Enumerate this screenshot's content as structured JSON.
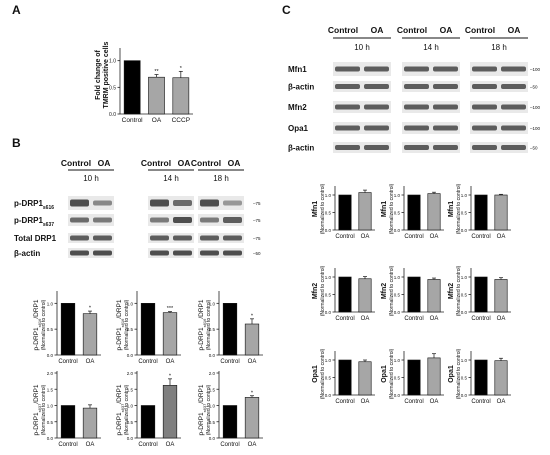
{
  "panel_a": {
    "letter": "A",
    "ylabel_line1": "Fold change of",
    "ylabel_line2": "TMRM positive cells",
    "yticks": [
      "0.0",
      "0.5",
      "1.0"
    ],
    "categories": [
      "Control",
      "OA",
      "CCCP"
    ],
    "sig": [
      "",
      "**",
      "*"
    ]
  },
  "panel_b": {
    "letter": "B",
    "blot_header": [
      "Control",
      "OA"
    ],
    "timepoints": [
      "10 h",
      "14 h",
      "18 h"
    ],
    "row_labels": [
      {
        "main": "p-DRP1",
        "sub": "s616"
      },
      {
        "main": "p-DRP1",
        "sub": "s637"
      },
      {
        "main": "Total DRP1",
        "sub": ""
      },
      {
        "main": "β-actin",
        "sub": ""
      }
    ],
    "markers": [
      "75",
      "75",
      "75",
      "50"
    ],
    "ylabel_norm": "(Normalized to control)",
    "ylabel_row1": {
      "main": "p-DRP1",
      "sub": "s616",
      "tail": "/DRP1"
    },
    "ylabel_row2": {
      "main": "p-DRP1",
      "sub": "s637",
      "tail": "/DRP1"
    },
    "row1_yticks": [
      "0.0",
      "0.5",
      "1.0"
    ],
    "row2_yticks": [
      "0.0",
      "0.5",
      "1.0",
      "1.5",
      "2.0"
    ],
    "categories": [
      "Control",
      "OA"
    ],
    "row1_sig": [
      "*",
      "***",
      "*"
    ],
    "row2_sig": [
      "",
      "*",
      "*"
    ]
  },
  "panel_c": {
    "letter": "C",
    "blot_header": [
      "Control",
      "OA"
    ],
    "timepoints": [
      "10 h",
      "14 h",
      "18 h"
    ],
    "row_labels": [
      "Mfn1",
      "β-actin",
      "Mfn2",
      "Opa1",
      "β-actin"
    ],
    "markers": [
      "100",
      "50",
      "100",
      "100",
      "50"
    ],
    "ylabel_norm": "(Normalized to control)",
    "chart_rows": [
      "Mfn1",
      "Mfn2",
      "Opa1"
    ],
    "yticks": [
      "0.0",
      "0.5",
      "1.0"
    ],
    "categories": [
      "Control",
      "OA"
    ]
  },
  "chart_data": [
    {
      "type": "bar",
      "id": "A",
      "categories": [
        "Control",
        "OA",
        "CCCP"
      ],
      "values": [
        1.0,
        0.69,
        0.68
      ],
      "errors": [
        0,
        0.05,
        0.12
      ],
      "ylabel": "Fold change of TMRM positive cells",
      "ylim": [
        0,
        1.2
      ]
    },
    {
      "type": "bar",
      "id": "B-s616-10h",
      "categories": [
        "Control",
        "OA"
      ],
      "values": [
        1.0,
        0.8
      ],
      "errors": [
        0,
        0.05
      ],
      "ylim": [
        0,
        1.2
      ]
    },
    {
      "type": "bar",
      "id": "B-s616-14h",
      "categories": [
        "Control",
        "OA"
      ],
      "values": [
        1.0,
        0.82
      ],
      "errors": [
        0,
        0.02
      ],
      "ylim": [
        0,
        1.2
      ]
    },
    {
      "type": "bar",
      "id": "B-s616-18h",
      "categories": [
        "Control",
        "OA"
      ],
      "values": [
        1.0,
        0.6
      ],
      "errors": [
        0,
        0.1
      ],
      "ylim": [
        0,
        1.2
      ]
    },
    {
      "type": "bar",
      "id": "B-s637-10h",
      "categories": [
        "Control",
        "OA"
      ],
      "values": [
        1.0,
        0.92
      ],
      "errors": [
        0,
        0.1
      ],
      "ylim": [
        0,
        2.0
      ]
    },
    {
      "type": "bar",
      "id": "B-s637-14h",
      "categories": [
        "Control",
        "OA"
      ],
      "values": [
        1.0,
        1.62
      ],
      "errors": [
        0,
        0.2
      ],
      "ylim": [
        0,
        2.0
      ]
    },
    {
      "type": "bar",
      "id": "B-s637-18h",
      "categories": [
        "Control",
        "OA"
      ],
      "values": [
        1.0,
        1.25
      ],
      "errors": [
        0,
        0.05
      ],
      "ylim": [
        0,
        2.0
      ]
    },
    {
      "type": "bar",
      "id": "C-Mfn1-10h",
      "categories": [
        "Control",
        "OA"
      ],
      "values": [
        1.0,
        1.07
      ],
      "errors": [
        0,
        0.07
      ],
      "ylim": [
        0,
        1.2
      ]
    },
    {
      "type": "bar",
      "id": "C-Mfn1-14h",
      "categories": [
        "Control",
        "OA"
      ],
      "values": [
        1.0,
        1.04
      ],
      "errors": [
        0,
        0.04
      ],
      "ylim": [
        0,
        1.2
      ]
    },
    {
      "type": "bar",
      "id": "C-Mfn1-18h",
      "categories": [
        "Control",
        "OA"
      ],
      "values": [
        1.0,
        1.0
      ],
      "errors": [
        0,
        0.02
      ],
      "ylim": [
        0,
        1.2
      ]
    },
    {
      "type": "bar",
      "id": "C-Mfn2-10h",
      "categories": [
        "Control",
        "OA"
      ],
      "values": [
        1.0,
        0.95
      ],
      "errors": [
        0,
        0.06
      ],
      "ylim": [
        0,
        1.2
      ]
    },
    {
      "type": "bar",
      "id": "C-Mfn2-14h",
      "categories": [
        "Control",
        "OA"
      ],
      "values": [
        1.0,
        0.93
      ],
      "errors": [
        0,
        0.04
      ],
      "ylim": [
        0,
        1.2
      ]
    },
    {
      "type": "bar",
      "id": "C-Mfn2-18h",
      "categories": [
        "Control",
        "OA"
      ],
      "values": [
        1.0,
        0.93
      ],
      "errors": [
        0,
        0.05
      ],
      "ylim": [
        0,
        1.2
      ]
    },
    {
      "type": "bar",
      "id": "C-Opa1-10h",
      "categories": [
        "Control",
        "OA"
      ],
      "values": [
        1.0,
        0.95
      ],
      "errors": [
        0,
        0.05
      ],
      "ylim": [
        0,
        1.2
      ]
    },
    {
      "type": "bar",
      "id": "C-Opa1-14h",
      "categories": [
        "Control",
        "OA"
      ],
      "values": [
        1.0,
        1.06
      ],
      "errors": [
        0,
        0.12
      ],
      "ylim": [
        0,
        1.2
      ]
    },
    {
      "type": "bar",
      "id": "C-Opa1-18h",
      "categories": [
        "Control",
        "OA"
      ],
      "values": [
        1.0,
        0.98
      ],
      "errors": [
        0,
        0.07
      ],
      "ylim": [
        0,
        1.2
      ]
    }
  ],
  "colors": {
    "control": "#000000",
    "oa": "#a6a6a6",
    "oa_dark": "#7f7f7f"
  }
}
